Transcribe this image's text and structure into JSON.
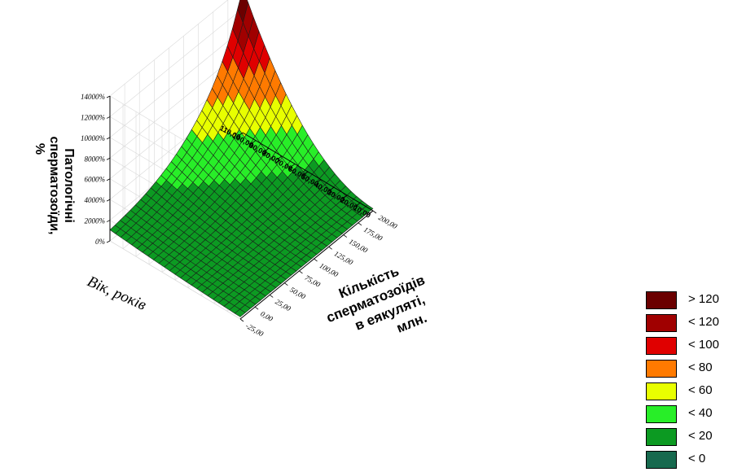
{
  "chart_data": {
    "type": "surface3d",
    "z_axis": {
      "title_lines": [
        "Патологічні",
        "сперматозоїди,",
        "%"
      ],
      "ticks": [
        "0%",
        "2000%",
        "4000%",
        "6000%",
        "8000%",
        "10000%",
        "12000%",
        "14000%"
      ]
    },
    "y_axis": {
      "title": "Вік, років",
      "ticks": [
        "10,00",
        "20,00",
        "30,00",
        "40,00",
        "50,00",
        "60,00",
        "70,00",
        "80,00",
        "90,00",
        "100,00",
        "110,00"
      ]
    },
    "x_axis": {
      "title_lines": [
        "Кількість",
        "сперматозоїдів",
        "в еякуляті,",
        "млн."
      ],
      "ticks": [
        "-25,00",
        "0,00",
        "25,00",
        "50,00",
        "75,00",
        "100,00",
        "125,00",
        "150,00",
        "175,00",
        "200,00"
      ]
    },
    "legend": [
      {
        "label": "> 120",
        "color": "#6b0000"
      },
      {
        "label": "< 120",
        "color": "#a00000"
      },
      {
        "label": "< 100",
        "color": "#e00000"
      },
      {
        "label": "< 80",
        "color": "#ff7a00"
      },
      {
        "label": "< 60",
        "color": "#e8ff00"
      },
      {
        "label": "< 40",
        "color": "#28ee28"
      },
      {
        "label": "< 20",
        "color": "#0c9a22"
      },
      {
        "label": "< 0",
        "color": "#17694e"
      }
    ]
  }
}
